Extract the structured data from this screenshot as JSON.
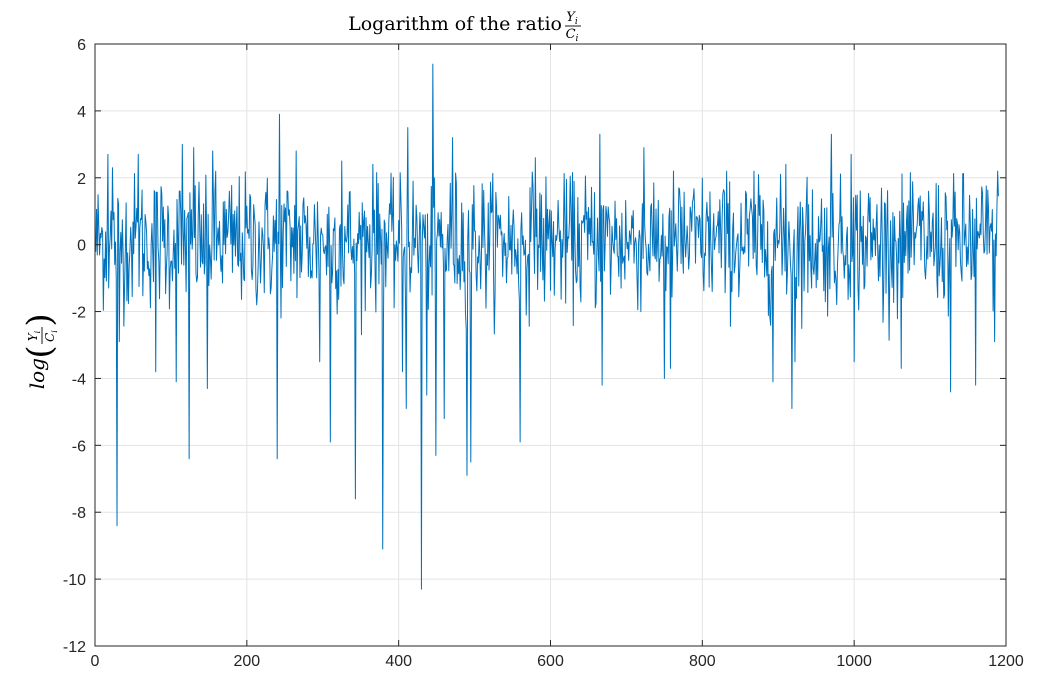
{
  "chart_data": {
    "type": "line",
    "title": "Logarithm of the ratio",
    "title_fraction": {
      "numerator": "Y",
      "numerator_sub": "i",
      "denominator": "C",
      "denominator_sub": "i"
    },
    "ylabel": {
      "prefix": "log",
      "numerator": "Y",
      "numerator_sub": "i",
      "denominator": "C",
      "denominator_sub": "i"
    },
    "xlabel": "",
    "xlim": [
      0,
      1200
    ],
    "ylim": [
      -12,
      6
    ],
    "xticks": [
      0,
      200,
      400,
      600,
      800,
      1000,
      1200
    ],
    "yticks": [
      -12,
      -10,
      -8,
      -6,
      -4,
      -2,
      0,
      2,
      4,
      6
    ],
    "grid": true,
    "series_color": "#0072BD",
    "n_points": 1190,
    "baseline_mean": 0.1,
    "baseline_sd": 1.0,
    "spikes": [
      {
        "x": 17,
        "y": 2.7
      },
      {
        "x": 23,
        "y": 2.3
      },
      {
        "x": 29,
        "y": -8.4
      },
      {
        "x": 32,
        "y": -2.9
      },
      {
        "x": 57,
        "y": 2.7
      },
      {
        "x": 80,
        "y": -3.8
      },
      {
        "x": 107,
        "y": -4.1
      },
      {
        "x": 115,
        "y": 3.0
      },
      {
        "x": 124,
        "y": -6.4
      },
      {
        "x": 130,
        "y": 2.9
      },
      {
        "x": 148,
        "y": -4.3
      },
      {
        "x": 155,
        "y": 2.8
      },
      {
        "x": 240,
        "y": -6.4
      },
      {
        "x": 243,
        "y": 3.9
      },
      {
        "x": 265,
        "y": 2.8
      },
      {
        "x": 296,
        "y": -3.5
      },
      {
        "x": 310,
        "y": -5.9
      },
      {
        "x": 325,
        "y": 2.5
      },
      {
        "x": 343,
        "y": -7.6
      },
      {
        "x": 366,
        "y": 2.4
      },
      {
        "x": 379,
        "y": -9.1
      },
      {
        "x": 405,
        "y": -3.8
      },
      {
        "x": 410,
        "y": -4.9
      },
      {
        "x": 412,
        "y": 3.5
      },
      {
        "x": 430,
        "y": -10.3
      },
      {
        "x": 437,
        "y": -4.5
      },
      {
        "x": 445,
        "y": 5.4
      },
      {
        "x": 449,
        "y": -6.3
      },
      {
        "x": 460,
        "y": -5.2
      },
      {
        "x": 471,
        "y": 3.2
      },
      {
        "x": 490,
        "y": -6.9
      },
      {
        "x": 495,
        "y": -6.5
      },
      {
        "x": 560,
        "y": -5.9
      },
      {
        "x": 580,
        "y": 2.6
      },
      {
        "x": 665,
        "y": 3.3
      },
      {
        "x": 668,
        "y": -4.2
      },
      {
        "x": 723,
        "y": 2.9
      },
      {
        "x": 750,
        "y": -4.0
      },
      {
        "x": 758,
        "y": -3.7
      },
      {
        "x": 868,
        "y": 2.2
      },
      {
        "x": 893,
        "y": -4.1
      },
      {
        "x": 910,
        "y": 2.4
      },
      {
        "x": 918,
        "y": -4.9
      },
      {
        "x": 922,
        "y": -3.5
      },
      {
        "x": 970,
        "y": 3.3
      },
      {
        "x": 996,
        "y": 2.7
      },
      {
        "x": 1000,
        "y": -3.5
      },
      {
        "x": 1062,
        "y": -3.7
      },
      {
        "x": 1127,
        "y": -4.4
      },
      {
        "x": 1160,
        "y": -4.2
      },
      {
        "x": 1185,
        "y": -2.9
      },
      {
        "x": 1189,
        "y": 2.2
      }
    ]
  }
}
